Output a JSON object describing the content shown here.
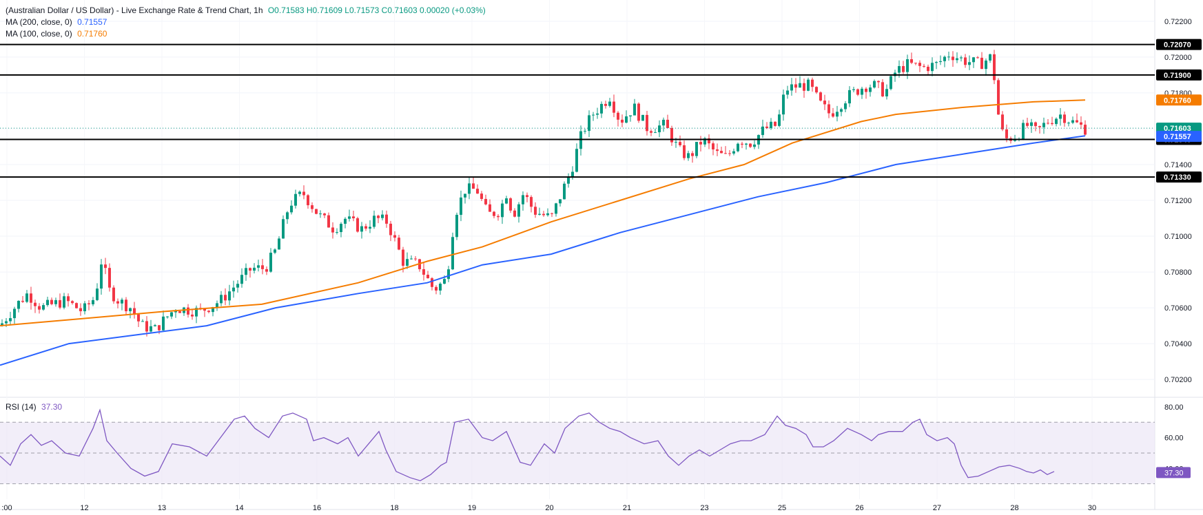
{
  "header": {
    "title": "(Australian Dollar / US Dollar) - Live Exchange Rate & Trend Chart, 1h",
    "ohlc": "O0.71583 H0.71609 L0.71573 C0.71603 0.00020 (+0.03%)",
    "ma200_label": "MA (200, close, 0)",
    "ma200_value": "0.71557",
    "ma100_label": "MA (100, close, 0)",
    "ma100_value": "0.71760",
    "rsi_label": "RSI (14)",
    "rsi_value": "37.30"
  },
  "colors": {
    "up": "#089981",
    "down": "#f23645",
    "ma200": "#2962ff",
    "ma100": "#f57c00",
    "rsi": "#7e57c2",
    "rsi_band": "#ede7f6",
    "level_line": "#000000",
    "last_price": "#089981"
  },
  "chart_data": [
    {
      "type": "candlestick",
      "title": "(Australian Dollar / US Dollar) - Live Exchange Rate & Trend Chart, 1h",
      "ylim": [
        0.7012,
        0.7228
      ],
      "y_ticks": [
        "0.72200",
        "0.72000",
        "0.71800",
        "0.71600",
        "0.71400",
        "0.71200",
        "0.71000",
        "0.70800",
        "0.70600",
        "0.70400",
        "0.70200"
      ],
      "x_labels": [
        ":00",
        "12",
        "13",
        "14",
        "16",
        "18",
        "19",
        "20",
        "21",
        "23",
        "25",
        "26",
        "27",
        "28",
        "30"
      ],
      "grid": true,
      "price_path": [
        [
          0,
          0.705
        ],
        [
          25,
          0.7062
        ],
        [
          40,
          0.7068
        ],
        [
          60,
          0.706
        ],
        [
          95,
          0.7064
        ],
        [
          120,
          0.7058
        ],
        [
          138,
          0.7066
        ],
        [
          148,
          0.7088
        ],
        [
          158,
          0.707
        ],
        [
          172,
          0.7064
        ],
        [
          190,
          0.706
        ],
        [
          205,
          0.705
        ],
        [
          225,
          0.7048
        ],
        [
          255,
          0.706
        ],
        [
          290,
          0.7058
        ],
        [
          320,
          0.7064
        ],
        [
          340,
          0.7072
        ],
        [
          365,
          0.7082
        ],
        [
          385,
          0.7082
        ],
        [
          400,
          0.7092
        ],
        [
          420,
          0.7118
        ],
        [
          440,
          0.7124
        ],
        [
          462,
          0.7112
        ],
        [
          485,
          0.7104
        ],
        [
          500,
          0.711
        ],
        [
          525,
          0.7104
        ],
        [
          545,
          0.711
        ],
        [
          562,
          0.7108
        ],
        [
          585,
          0.7086
        ],
        [
          608,
          0.7084
        ],
        [
          630,
          0.707
        ],
        [
          648,
          0.7076
        ],
        [
          660,
          0.7112
        ],
        [
          675,
          0.7126
        ],
        [
          692,
          0.7126
        ],
        [
          708,
          0.7112
        ],
        [
          725,
          0.7114
        ],
        [
          735,
          0.7124
        ],
        [
          745,
          0.7112
        ],
        [
          760,
          0.7124
        ],
        [
          775,
          0.7114
        ],
        [
          800,
          0.711
        ],
        [
          815,
          0.7124
        ],
        [
          830,
          0.7138
        ],
        [
          845,
          0.7158
        ],
        [
          860,
          0.7168
        ],
        [
          885,
          0.7178
        ],
        [
          900,
          0.7164
        ],
        [
          920,
          0.7172
        ],
        [
          940,
          0.716
        ],
        [
          965,
          0.7162
        ],
        [
          985,
          0.7148
        ],
        [
          1000,
          0.7144
        ],
        [
          1020,
          0.7154
        ],
        [
          1040,
          0.7146
        ],
        [
          1055,
          0.7144
        ],
        [
          1072,
          0.7154
        ],
        [
          1090,
          0.7152
        ],
        [
          1110,
          0.716
        ],
        [
          1128,
          0.7162
        ],
        [
          1140,
          0.7182
        ],
        [
          1158,
          0.7184
        ],
        [
          1175,
          0.7184
        ],
        [
          1190,
          0.7174
        ],
        [
          1205,
          0.7168
        ],
        [
          1230,
          0.7178
        ],
        [
          1255,
          0.7184
        ],
        [
          1270,
          0.7184
        ],
        [
          1285,
          0.718
        ],
        [
          1300,
          0.7192
        ],
        [
          1318,
          0.7196
        ],
        [
          1340,
          0.7194
        ],
        [
          1360,
          0.7196
        ],
        [
          1378,
          0.7202
        ],
        [
          1400,
          0.7198
        ],
        [
          1422,
          0.7196
        ],
        [
          1438,
          0.72
        ],
        [
          1445,
          0.7184
        ],
        [
          1450,
          0.7164
        ],
        [
          1458,
          0.7154
        ],
        [
          1475,
          0.7156
        ],
        [
          1490,
          0.7162
        ],
        [
          1505,
          0.7158
        ],
        [
          1520,
          0.7164
        ],
        [
          1540,
          0.7168
        ],
        [
          1555,
          0.7164
        ],
        [
          1566,
          0.7162
        ],
        [
          1575,
          0.716
        ]
      ],
      "ma100": [
        [
          0,
          0.705
        ],
        [
          120,
          0.7054
        ],
        [
          240,
          0.7058
        ],
        [
          380,
          0.7062
        ],
        [
          520,
          0.7074
        ],
        [
          620,
          0.7086
        ],
        [
          700,
          0.7094
        ],
        [
          800,
          0.7108
        ],
        [
          900,
          0.712
        ],
        [
          1000,
          0.7132
        ],
        [
          1080,
          0.714
        ],
        [
          1150,
          0.7152
        ],
        [
          1250,
          0.7164
        ],
        [
          1300,
          0.7168
        ],
        [
          1400,
          0.7172
        ],
        [
          1500,
          0.7175
        ],
        [
          1575,
          0.7176
        ]
      ],
      "ma200": [
        [
          0,
          0.7028
        ],
        [
          100,
          0.704
        ],
        [
          220,
          0.7046
        ],
        [
          300,
          0.705
        ],
        [
          400,
          0.706
        ],
        [
          520,
          0.7068
        ],
        [
          620,
          0.7074
        ],
        [
          700,
          0.7084
        ],
        [
          800,
          0.709
        ],
        [
          900,
          0.7102
        ],
        [
          1000,
          0.7112
        ],
        [
          1100,
          0.7122
        ],
        [
          1200,
          0.713
        ],
        [
          1300,
          0.714
        ],
        [
          1400,
          0.7146
        ],
        [
          1500,
          0.7152
        ],
        [
          1575,
          0.7156
        ]
      ],
      "levels": [
        {
          "value": 0.7207,
          "label": "0.72070"
        },
        {
          "value": 0.719,
          "label": "0.71900"
        },
        {
          "value": 0.7154,
          "label": "0.71540"
        },
        {
          "value": 0.7133,
          "label": "0.71330"
        }
      ],
      "last_price": {
        "value": 0.71603,
        "label": "0.71603"
      },
      "ma100_last": {
        "value": 0.7176,
        "label": "0.71760"
      },
      "ma200_last": {
        "value": 0.71557,
        "label": "0.71557"
      }
    },
    {
      "type": "line",
      "title": "RSI (14)",
      "ylim": [
        20,
        84
      ],
      "y_ticks": [
        "80.00",
        "60.00",
        "40.00"
      ],
      "band": [
        30,
        70
      ],
      "midline": 50,
      "last": {
        "value": 37.3,
        "label": "37.30"
      },
      "rsi_path": [
        [
          0,
          48
        ],
        [
          15,
          42
        ],
        [
          30,
          56
        ],
        [
          45,
          62
        ],
        [
          60,
          55
        ],
        [
          75,
          58
        ],
        [
          95,
          50
        ],
        [
          115,
          48
        ],
        [
          135,
          66
        ],
        [
          145,
          78
        ],
        [
          155,
          58
        ],
        [
          170,
          50
        ],
        [
          190,
          40
        ],
        [
          210,
          35
        ],
        [
          230,
          38
        ],
        [
          250,
          56
        ],
        [
          275,
          54
        ],
        [
          300,
          48
        ],
        [
          320,
          60
        ],
        [
          340,
          72
        ],
        [
          355,
          74
        ],
        [
          370,
          66
        ],
        [
          390,
          60
        ],
        [
          410,
          74
        ],
        [
          425,
          76
        ],
        [
          445,
          72
        ],
        [
          455,
          58
        ],
        [
          470,
          60
        ],
        [
          490,
          56
        ],
        [
          505,
          60
        ],
        [
          520,
          48
        ],
        [
          535,
          56
        ],
        [
          550,
          64
        ],
        [
          560,
          52
        ],
        [
          575,
          38
        ],
        [
          595,
          34
        ],
        [
          610,
          32
        ],
        [
          625,
          36
        ],
        [
          640,
          42
        ],
        [
          648,
          44
        ],
        [
          660,
          70
        ],
        [
          680,
          72
        ],
        [
          700,
          60
        ],
        [
          715,
          58
        ],
        [
          735,
          64
        ],
        [
          755,
          44
        ],
        [
          770,
          42
        ],
        [
          790,
          56
        ],
        [
          805,
          50
        ],
        [
          820,
          66
        ],
        [
          840,
          74
        ],
        [
          855,
          76
        ],
        [
          870,
          70
        ],
        [
          885,
          66
        ],
        [
          900,
          64
        ],
        [
          915,
          60
        ],
        [
          935,
          56
        ],
        [
          955,
          58
        ],
        [
          970,
          48
        ],
        [
          985,
          42
        ],
        [
          1000,
          48
        ],
        [
          1015,
          52
        ],
        [
          1030,
          48
        ],
        [
          1045,
          52
        ],
        [
          1060,
          56
        ],
        [
          1075,
          58
        ],
        [
          1090,
          58
        ],
        [
          1110,
          62
        ],
        [
          1128,
          74
        ],
        [
          1140,
          68
        ],
        [
          1155,
          66
        ],
        [
          1170,
          62
        ],
        [
          1180,
          54
        ],
        [
          1195,
          54
        ],
        [
          1210,
          58
        ],
        [
          1230,
          66
        ],
        [
          1250,
          62
        ],
        [
          1265,
          58
        ],
        [
          1275,
          62
        ],
        [
          1290,
          64
        ],
        [
          1310,
          64
        ],
        [
          1325,
          70
        ],
        [
          1335,
          72
        ],
        [
          1345,
          62
        ],
        [
          1360,
          58
        ],
        [
          1375,
          60
        ],
        [
          1385,
          56
        ],
        [
          1395,
          42
        ],
        [
          1405,
          34
        ],
        [
          1420,
          35
        ],
        [
          1435,
          38
        ],
        [
          1450,
          41
        ],
        [
          1465,
          42
        ],
        [
          1480,
          40
        ],
        [
          1490,
          38
        ],
        [
          1500,
          37
        ],
        [
          1510,
          39
        ],
        [
          1520,
          36
        ],
        [
          1530,
          38
        ]
      ]
    }
  ]
}
